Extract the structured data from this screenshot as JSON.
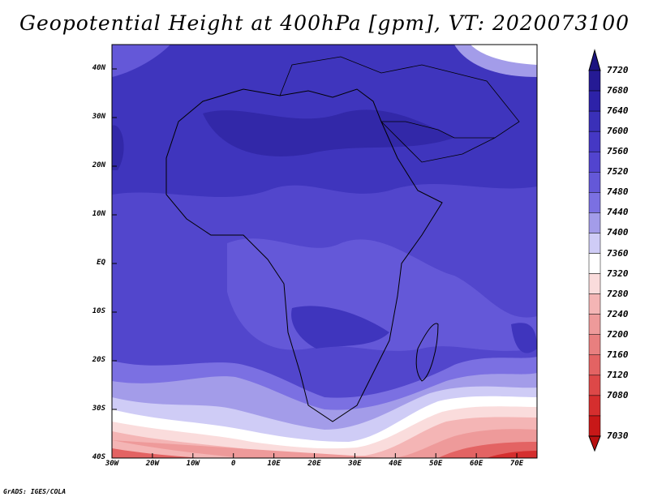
{
  "title": "Geopotential Height at 400hPa [gpm], VT: 2020073100",
  "footer": "GrADS: IGES/COLA",
  "map": {
    "lat_labels": [
      "40N",
      "30N",
      "20N",
      "10N",
      "EQ",
      "10S",
      "20S",
      "30S",
      "40S"
    ],
    "lon_labels": [
      "30W",
      "20W",
      "10W",
      "0",
      "10E",
      "20E",
      "30E",
      "40E",
      "50E",
      "60E",
      "70E"
    ],
    "lat_range": [
      -40,
      45
    ],
    "lon_range": [
      -30,
      75
    ]
  },
  "colorbar": {
    "levels": [
      "7720",
      "7680",
      "7640",
      "7600",
      "7560",
      "7520",
      "7480",
      "7440",
      "7400",
      "7360",
      "7320",
      "7280",
      "7240",
      "7200",
      "7160",
      "7120",
      "7080",
      "7030"
    ],
    "colors": [
      "#251a94",
      "#2d22a8",
      "#3a30b8",
      "#4538c4",
      "#5244cf",
      "#6458d8",
      "#7b70e2",
      "#a39ce9",
      "#cfccf6",
      "#ffffff",
      "#fadcdc",
      "#f4b5b5",
      "#ee9a9a",
      "#e87f7f",
      "#e36363",
      "#dd4848",
      "#d52e2e",
      "#c81818"
    ],
    "top_arrow_color": "#1c1480",
    "bottom_arrow_color": "#b81010"
  }
}
